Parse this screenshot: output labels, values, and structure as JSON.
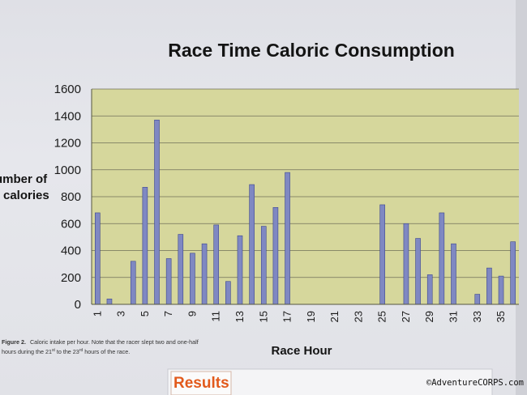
{
  "chart_data": {
    "type": "bar",
    "title": "Race Time Caloric Consumption",
    "ylabel_lines": [
      "umber of",
      "calories"
    ],
    "xlabel": "Race Hour",
    "ylim": [
      0,
      1600
    ],
    "yticks": [
      0,
      200,
      400,
      600,
      800,
      1000,
      1200,
      1400,
      1600
    ],
    "xtick_labels": [
      "1",
      "3",
      "5",
      "7",
      "9",
      "11",
      "13",
      "15",
      "17",
      "19",
      "21",
      "23",
      "25",
      "27",
      "29",
      "31",
      "33",
      "35"
    ],
    "categories": [
      1,
      2,
      3,
      4,
      5,
      6,
      7,
      8,
      9,
      10,
      11,
      12,
      13,
      14,
      15,
      16,
      17,
      18,
      19,
      20,
      21,
      22,
      23,
      24,
      25,
      26,
      27,
      28,
      29,
      30,
      31,
      32,
      33,
      34,
      35,
      36
    ],
    "values": [
      680,
      40,
      0,
      320,
      870,
      1370,
      340,
      520,
      380,
      450,
      590,
      170,
      510,
      890,
      580,
      720,
      980,
      0,
      0,
      0,
      0,
      0,
      0,
      0,
      740,
      0,
      600,
      490,
      220,
      680,
      450,
      0,
      75,
      270,
      210,
      465
    ],
    "colors": {
      "bar": "#7f88c2",
      "bar_edge": "#3c4690",
      "plot_bg": "#d6d79c",
      "grid": "#6f7058"
    }
  },
  "caption": {
    "label": "Figure 2.",
    "line1": "Caloric intake per hour. Note that the racer slept two and one-half",
    "line2_pre": "hours during the 21",
    "sup1": "st",
    "line2_mid": " to the 23",
    "sup2": "rd",
    "line2_post": " hours of the race."
  },
  "results_label": "Results",
  "watermark": "©AdventureCORPS.com"
}
